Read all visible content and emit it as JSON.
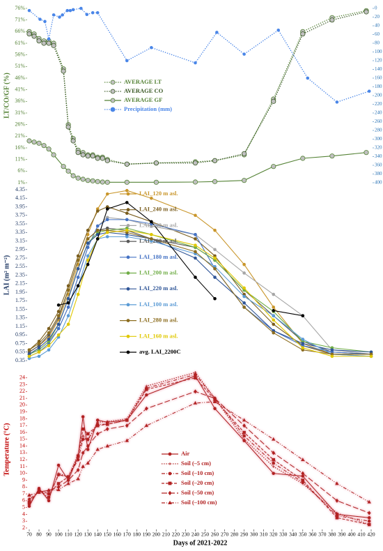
{
  "chart_data": [
    {
      "type": "line",
      "ylabel": "LT/CO/GF (%)",
      "xlim": [
        70,
        420
      ],
      "ylim": [
        1,
        76
      ],
      "yticks": [
        {
          "value": 1,
          "label": "1%"
        },
        {
          "value": 6,
          "label": "6%"
        },
        {
          "value": 11,
          "label": "11%"
        },
        {
          "value": 16,
          "label": "16%"
        },
        {
          "value": 21,
          "label": "21%"
        },
        {
          "value": 26,
          "label": "26%"
        },
        {
          "value": 31,
          "label": "31%"
        },
        {
          "value": 36,
          "label": "36%"
        },
        {
          "value": 41,
          "label": "41%"
        },
        {
          "value": 46,
          "label": "46%"
        },
        {
          "value": 51,
          "label": "51%"
        },
        {
          "value": 56,
          "label": "56%"
        },
        {
          "value": 61,
          "label": "61%"
        },
        {
          "value": 66,
          "label": "66%"
        },
        {
          "value": 71,
          "label": "71%"
        },
        {
          "value": 76,
          "label": "76%"
        }
      ],
      "y2lim": [
        400,
        0
      ],
      "y2ticks": [
        0,
        20,
        40,
        60,
        80,
        100,
        120,
        140,
        160,
        180,
        200,
        220,
        240,
        260,
        280,
        300,
        320,
        340,
        360,
        380,
        400
      ],
      "tick_color": "#548235",
      "y2tick_color": "#2e75b6",
      "legend": "center-left",
      "x": [
        70,
        75,
        80,
        85,
        90,
        95,
        105,
        110,
        115,
        120,
        125,
        130,
        135,
        140,
        145,
        150,
        170,
        200,
        240,
        260,
        290,
        320,
        350,
        380,
        415
      ],
      "series": [
        {
          "name": "AVERAGE LT",
          "color": "#548235",
          "dash": "dotted",
          "marker": "circle",
          "values": [
            66,
            65,
            63,
            62,
            62,
            61,
            50,
            26,
            20,
            15,
            14,
            13,
            13,
            12,
            12,
            11,
            9,
            9.5,
            10,
            10.5,
            13,
            37,
            66,
            72,
            75
          ]
        },
        {
          "name": "AVERAGE CO",
          "color": "#385723",
          "dash": "dotted",
          "marker": "circle",
          "values": [
            65,
            64,
            62,
            61,
            61,
            60,
            49,
            25,
            19,
            14,
            13,
            12.5,
            12.5,
            11.5,
            11.5,
            10.5,
            9,
            9.5,
            9.5,
            10.5,
            13.5,
            36,
            65,
            71,
            74.5
          ]
        },
        {
          "name": "AVERAGE GF",
          "color": "#548235",
          "dash": "solid",
          "marker": "circle",
          "values": [
            19,
            18.5,
            18,
            17,
            15.5,
            13,
            8,
            6,
            4,
            3,
            2.5,
            2,
            1.8,
            1.5,
            1.3,
            1.2,
            1.2,
            1.2,
            1.3,
            1.5,
            2,
            8,
            11.5,
            12.5,
            14
          ]
        },
        {
          "name": "Precipitation (mm)",
          "color": "#4a86e8",
          "dash": "dotted",
          "marker": "circle",
          "axis": "y2",
          "x": [
            70,
            81,
            86,
            90,
            95,
            101,
            104,
            109,
            112,
            115,
            123,
            129,
            135,
            140,
            170,
            195,
            240,
            262,
            290,
            325,
            355,
            385,
            418
          ],
          "values": [
            5,
            25,
            30,
            70,
            15,
            20,
            15,
            5,
            5,
            3,
            0,
            14,
            10,
            10,
            120,
            90,
            125,
            55,
            105,
            50,
            160,
            215,
            190
          ]
        }
      ]
    },
    {
      "type": "line",
      "ylabel": "LAI (m² m⁻²)",
      "xlim": [
        70,
        420
      ],
      "ylim": [
        0.35,
        4.35
      ],
      "yticks": [
        0.35,
        0.55,
        0.75,
        0.95,
        1.15,
        1.35,
        1.55,
        1.75,
        1.95,
        2.15,
        2.35,
        2.55,
        2.75,
        2.95,
        3.15,
        3.35,
        3.55,
        3.75,
        3.95,
        4.15,
        4.35
      ],
      "tick_color": "#1f3864",
      "legend": "center",
      "x": [
        70,
        80,
        90,
        100,
        110,
        120,
        130,
        140,
        150,
        170,
        195,
        240,
        260,
        290,
        320,
        350,
        380,
        420
      ],
      "series": [
        {
          "name": "LAI_120 m asl.",
          "color": "#c9962b",
          "dash": "solid",
          "marker": "circle",
          "values": [
            0.55,
            0.7,
            0.9,
            1.3,
            1.9,
            2.6,
            3.3,
            3.9,
            4.25,
            4.33,
            4.15,
            3.75,
            3.4,
            2.6,
            1.6,
            0.75,
            0.5,
            0.45
          ]
        },
        {
          "name": "LAI_240 m asl.",
          "color": "#7b5e1e",
          "dash": "solid",
          "marker": "circle",
          "values": [
            0.6,
            0.8,
            1.1,
            1.5,
            2.1,
            2.8,
            3.4,
            3.85,
            3.95,
            3.8,
            3.6,
            3.2,
            2.8,
            1.9,
            1.2,
            0.7,
            0.5,
            0.5
          ]
        },
        {
          "name": "LAI_140 m asl.",
          "color": "#a6a6a6",
          "dash": "solid",
          "marker": "circle",
          "values": [
            0.5,
            0.6,
            0.8,
            1.1,
            1.6,
            2.3,
            3.0,
            3.5,
            3.7,
            3.65,
            3.5,
            3.3,
            2.95,
            2.4,
            1.9,
            1.4,
            0.6,
            0.5
          ]
        },
        {
          "name": "LAI_260 m asl.",
          "color": "#595959",
          "dash": "solid",
          "marker": "circle",
          "values": [
            0.55,
            0.7,
            0.95,
            1.35,
            2.0,
            2.7,
            3.2,
            3.4,
            3.45,
            3.4,
            3.2,
            3.0,
            2.7,
            2.0,
            1.4,
            0.8,
            0.55,
            0.5
          ]
        },
        {
          "name": "LAI_180 m asl.",
          "color": "#4472c4",
          "dash": "solid",
          "marker": "circle",
          "values": [
            0.45,
            0.55,
            0.75,
            1.1,
            1.6,
            2.3,
            3.0,
            3.5,
            3.65,
            3.65,
            3.55,
            3.3,
            2.5,
            1.6,
            1.05,
            0.7,
            0.55,
            0.5
          ]
        },
        {
          "name": "LAI_200 m asl.",
          "color": "#70ad47",
          "dash": "solid",
          "marker": "circle",
          "values": [
            0.5,
            0.6,
            0.8,
            1.2,
            1.8,
            2.5,
            3.1,
            3.35,
            3.4,
            3.45,
            3.3,
            3.0,
            2.7,
            2.0,
            1.5,
            0.8,
            0.65,
            0.55
          ]
        },
        {
          "name": "LAI_220 m asl.",
          "color": "#2f5597",
          "dash": "solid",
          "marker": "circle",
          "values": [
            0.5,
            0.65,
            0.85,
            1.2,
            1.8,
            2.5,
            3.1,
            3.3,
            3.35,
            3.3,
            3.2,
            2.75,
            2.3,
            1.7,
            1.05,
            0.75,
            0.6,
            0.55
          ]
        },
        {
          "name": "LAI_100 m asl.",
          "color": "#5b9bd5",
          "dash": "solid",
          "marker": "circle",
          "values": [
            0.4,
            0.45,
            0.6,
            0.9,
            1.4,
            2.1,
            2.8,
            3.2,
            3.25,
            3.25,
            3.15,
            2.85,
            2.55,
            1.85,
            1.4,
            0.85,
            0.5,
            0.45
          ]
        },
        {
          "name": "LAI_280 m asl.",
          "color": "#8c6d1f",
          "dash": "solid",
          "marker": "circle",
          "values": [
            0.6,
            0.75,
            1.0,
            1.4,
            2.0,
            2.7,
            3.2,
            3.4,
            3.4,
            3.35,
            3.2,
            2.9,
            2.5,
            1.6,
            1.0,
            0.6,
            0.5,
            0.5
          ]
        },
        {
          "name": "LAI_160 m asl.",
          "color": "#e0c800",
          "dash": "solid",
          "marker": "circle",
          "values": [
            0.45,
            0.55,
            0.7,
            0.95,
            1.2,
            1.9,
            2.7,
            3.2,
            3.35,
            3.4,
            3.3,
            3.05,
            2.75,
            2.05,
            1.3,
            0.65,
            0.45,
            0.45
          ]
        },
        {
          "name": "avg. LAI_2200C",
          "color": "#000000",
          "dash": "solid",
          "marker": "circle",
          "values": [
            null,
            null,
            null,
            1.65,
            1.7,
            2.1,
            2.6,
            3.2,
            3.9,
            4.05,
            3.6,
            2.3,
            1.8,
            null,
            1.52,
            1.4,
            null,
            null
          ]
        }
      ]
    },
    {
      "type": "line",
      "ylabel": "Temperature (°C)",
      "xlabel": "Days of 2021-2022",
      "xlim": [
        70,
        420
      ],
      "ylim": [
        2,
        25
      ],
      "yticks": [
        2,
        3,
        4,
        5,
        6,
        7,
        8,
        9,
        10,
        11,
        12,
        13,
        14,
        15,
        16,
        17,
        18,
        19,
        20,
        21,
        22,
        23,
        24
      ],
      "xticks": [
        70,
        80,
        90,
        100,
        110,
        120,
        130,
        140,
        150,
        160,
        170,
        180,
        190,
        200,
        210,
        220,
        230,
        240,
        250,
        260,
        270,
        280,
        290,
        300,
        310,
        320,
        330,
        340,
        350,
        360,
        370,
        380,
        390,
        400,
        410,
        420
      ],
      "tick_color": "#c00000",
      "legend": "lower-center",
      "glow": "#f4b6c2",
      "x": [
        70,
        80,
        90,
        100,
        110,
        120,
        125,
        130,
        140,
        150,
        170,
        190,
        240,
        260,
        290,
        320,
        350,
        385,
        418
      ],
      "series": [
        {
          "name": "Air",
          "color": "#b22222",
          "dash": "solid",
          "marker": "circle",
          "values": [
            5.2,
            7.8,
            6.0,
            11.2,
            9.0,
            12.5,
            18.3,
            13.5,
            17.8,
            17.5,
            17.8,
            21.5,
            24.3,
            19.5,
            14.8,
            10.0,
            9.6,
            4.0,
            3.5
          ]
        },
        {
          "name": "Soil (–5 cm)",
          "color": "#b22222",
          "dash": "dotted",
          "marker": "plus",
          "values": [
            5.5,
            7.5,
            6.3,
            10.0,
            9.5,
            12.8,
            15.5,
            14.8,
            17.5,
            17.6,
            18.0,
            22.8,
            24.8,
            21.0,
            15.0,
            11.0,
            8.5,
            4.2,
            2.5
          ]
        },
        {
          "name": "Soil (–10 cm)",
          "color": "#b22222",
          "dash": "dashdot",
          "marker": "circle",
          "values": [
            5.5,
            7.6,
            6.5,
            9.8,
            9.5,
            12.0,
            15.0,
            15.0,
            17.2,
            17.2,
            17.8,
            22.5,
            24.5,
            21.0,
            15.5,
            11.5,
            8.7,
            3.8,
            3.0
          ]
        },
        {
          "name": "Soil (–20 cm)",
          "color": "#b22222",
          "dash": "dashed",
          "marker": "square",
          "values": [
            5.8,
            7.5,
            7.0,
            8.5,
            9.5,
            12.5,
            16.5,
            15.8,
            17.0,
            17.2,
            17.8,
            22.3,
            24.0,
            20.8,
            16.0,
            12.0,
            9.0,
            3.5,
            2.5
          ]
        },
        {
          "name": "Soil (–50 cm)",
          "color": "#b22222",
          "dash": "longdash",
          "marker": "diamond",
          "values": [
            6.2,
            7.3,
            7.5,
            8.0,
            9.0,
            10.5,
            13.0,
            14.0,
            15.8,
            16.5,
            17.0,
            19.5,
            22.0,
            21.0,
            17.0,
            13.0,
            10.0,
            6.0,
            4.2
          ]
        },
        {
          "name": "Soil (–100 cm)",
          "color": "#b22222",
          "dash": "dashdotdot",
          "marker": "triangle",
          "values": [
            6.8,
            7.2,
            7.5,
            7.6,
            8.5,
            9.2,
            11.0,
            11.5,
            13.5,
            14.0,
            14.8,
            17.0,
            20.3,
            20.5,
            17.8,
            15.0,
            12.0,
            8.5,
            5.8
          ]
        }
      ]
    }
  ]
}
